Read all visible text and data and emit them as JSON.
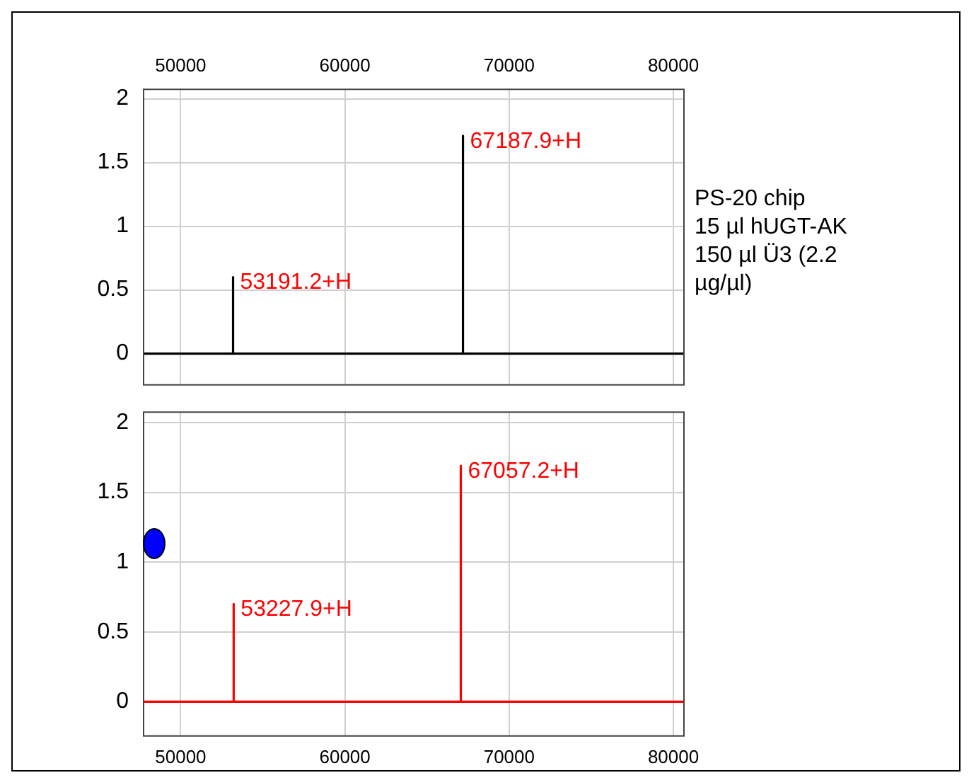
{
  "chart_data": [
    {
      "type": "line",
      "xlim": [
        47700,
        80600
      ],
      "xticks": [
        50000,
        60000,
        70000,
        80000
      ],
      "ylim": [
        -0.24,
        2.08
      ],
      "yticks": [
        0,
        0.5,
        1,
        1.5,
        2
      ],
      "grid": true,
      "marker": "none",
      "series": [
        {
          "color": "#000000",
          "x": [
            47700,
            53191.2,
            53191.2,
            53191.2,
            67187.9,
            67187.9,
            67187.9,
            80600
          ],
          "values": [
            0,
            0,
            0.6,
            0,
            0,
            1.71,
            0,
            0
          ]
        }
      ],
      "annotations": [
        {
          "text": "53191.2+H",
          "x": 53191.2,
          "y": 0.6
        },
        {
          "text": "67187.9+H",
          "x": 67187.9,
          "y": 1.71
        }
      ]
    },
    {
      "type": "line",
      "xlim": [
        47700,
        80600
      ],
      "xticks": [
        50000,
        60000,
        70000,
        80000
      ],
      "ylim": [
        -0.24,
        2.08
      ],
      "yticks": [
        0,
        0.5,
        1,
        1.5,
        2
      ],
      "grid": true,
      "marker": "none",
      "series": [
        {
          "color": "#ff0000",
          "x": [
            47700,
            53227.9,
            53227.9,
            53227.9,
            67057.2,
            67057.2,
            67057.2,
            80600
          ],
          "values": [
            0,
            0,
            0.7,
            0,
            0,
            1.69,
            0,
            0
          ]
        }
      ],
      "annotations": [
        {
          "text": "53227.9+H",
          "x": 53227.9,
          "y": 0.7
        },
        {
          "text": "67057.2+H",
          "x": 67057.2,
          "y": 1.69
        }
      ]
    },
    {
      "type": "other",
      "annotations": [
        "PS-20 chip",
        "15 µl hUGT-AK",
        "150 µl Ü3 (2.2 µg/µl)"
      ]
    }
  ]
}
